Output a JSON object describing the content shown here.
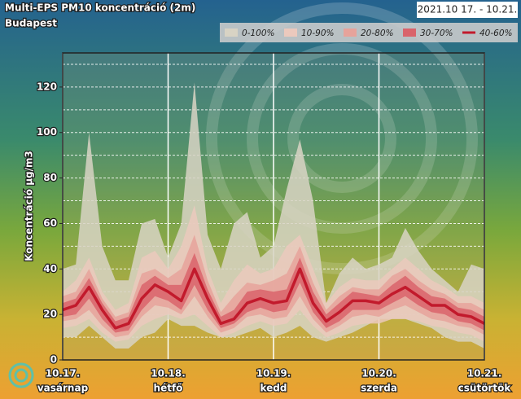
{
  "chart_data": {
    "type": "band",
    "title": "Multi-EPS PM10 koncentráció (2m)",
    "subtitle": "Budapest",
    "date_range": "2021.10 17. - 10.21.",
    "ylabel": "Koncentráció μg/m3",
    "categories": [
      "10.17.",
      null,
      null,
      null,
      null,
      null,
      null,
      null,
      "10.18.",
      null,
      null,
      null,
      null,
      null,
      null,
      null,
      "10.19.",
      null,
      null,
      null,
      null,
      null,
      null,
      null,
      "10.20.",
      null,
      null,
      null,
      null,
      null,
      null,
      null,
      "10.21."
    ],
    "weekdays": [
      "vasárnap",
      "hétfő",
      "kedd",
      "szerda",
      "csütörtök"
    ],
    "ylim": [
      0,
      135
    ],
    "yticks": [
      0,
      20,
      40,
      60,
      80,
      100,
      120
    ],
    "ygrid": [
      10,
      20,
      30,
      40,
      50,
      60,
      70,
      80,
      90,
      100,
      110,
      120,
      130
    ],
    "series": [
      {
        "name": "0-100%",
        "color": "#d8d3c4",
        "low": [
          10,
          10,
          15,
          10,
          5,
          5,
          10,
          12,
          18,
          15,
          15,
          12,
          10,
          10,
          12,
          14,
          10,
          12,
          15,
          10,
          8,
          10,
          12,
          15,
          18,
          18,
          18,
          16,
          14,
          10,
          8,
          8,
          5
        ],
        "high": [
          40,
          42,
          100,
          50,
          35,
          35,
          60,
          62,
          45,
          60,
          122,
          55,
          40,
          60,
          65,
          45,
          50,
          75,
          97,
          70,
          25,
          38,
          45,
          40,
          42,
          45,
          58,
          48,
          40,
          35,
          30,
          42,
          40
        ]
      },
      {
        "name": "10-90%",
        "color": "#ebc9bd",
        "low": [
          14,
          15,
          18,
          12,
          8,
          9,
          15,
          18,
          20,
          18,
          20,
          15,
          10,
          12,
          15,
          17,
          15,
          16,
          22,
          15,
          10,
          12,
          15,
          16,
          16,
          18,
          18,
          17,
          15,
          14,
          12,
          11,
          8
        ],
        "high": [
          30,
          35,
          45,
          30,
          22,
          25,
          45,
          48,
          40,
          50,
          68,
          40,
          25,
          35,
          42,
          38,
          40,
          50,
          55,
          40,
          25,
          32,
          36,
          35,
          35,
          40,
          45,
          40,
          35,
          32,
          28,
          28,
          25
        ]
      },
      {
        "name": "20-80%",
        "color": "#e6a39b",
        "low": [
          17,
          18,
          22,
          15,
          10,
          11,
          19,
          24,
          23,
          20,
          28,
          19,
          12,
          14,
          19,
          20,
          18,
          19,
          28,
          18,
          12,
          15,
          19,
          20,
          19,
          22,
          24,
          21,
          18,
          17,
          15,
          14,
          11
        ],
        "high": [
          28,
          30,
          40,
          27,
          19,
          21,
          38,
          40,
          36,
          40,
          55,
          35,
          21,
          28,
          34,
          33,
          35,
          38,
          50,
          34,
          22,
          28,
          32,
          31,
          31,
          37,
          40,
          35,
          31,
          29,
          25,
          25,
          22
        ]
      },
      {
        "name": "30-70%",
        "color": "#d9646b",
        "low": [
          19,
          20,
          27,
          18,
          12,
          13,
          22,
          28,
          26,
          22,
          33,
          22,
          14,
          16,
          21,
          23,
          21,
          22,
          34,
          21,
          14,
          17,
          22,
          22,
          22,
          25,
          28,
          24,
          21,
          20,
          17,
          16,
          13
        ],
        "high": [
          25,
          27,
          36,
          25,
          17,
          19,
          33,
          37,
          33,
          33,
          47,
          31,
          19,
          22,
          30,
          31,
          30,
          31,
          45,
          30,
          20,
          25,
          30,
          29,
          28,
          33,
          37,
          32,
          28,
          27,
          23,
          22,
          19
        ]
      },
      {
        "name": "40-60%",
        "color": "#c21a2c",
        "values": [
          22,
          24,
          32,
          22,
          14,
          16,
          27,
          33,
          30,
          26,
          40,
          27,
          16,
          18,
          25,
          27,
          25,
          26,
          40,
          25,
          17,
          21,
          26,
          26,
          25,
          29,
          32,
          28,
          24,
          24,
          20,
          19,
          16
        ]
      }
    ]
  }
}
